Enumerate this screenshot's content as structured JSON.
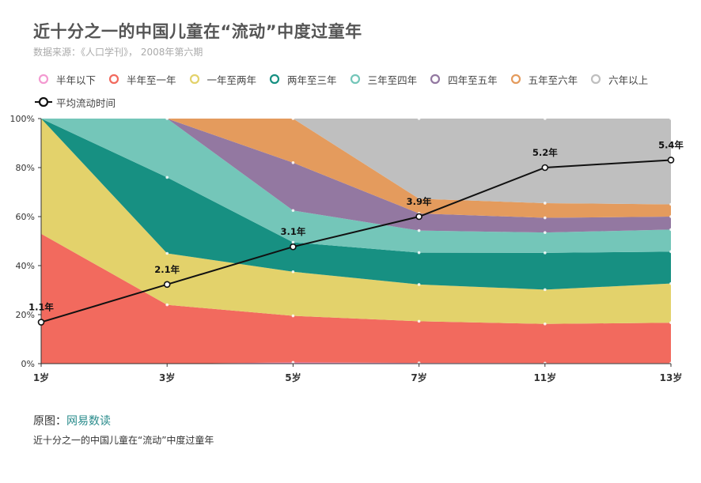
{
  "title": "近十分之一的中国儿童在“流动”中度过童年",
  "subtitle": "数据来源：《人口学刊》， 2008年第六期",
  "source": {
    "label": "原图：",
    "link": "网易数读"
  },
  "caption": "近十分之一的中国儿童在“流动”中度过童年",
  "chart_data": {
    "type": "area",
    "stacked": true,
    "categories": [
      "1岁",
      "3岁",
      "5岁",
      "7岁",
      "11岁",
      "13岁"
    ],
    "ylim": [
      0,
      100
    ],
    "y_ticks": [
      "0%",
      "20%",
      "40%",
      "60%",
      "80%",
      "100%"
    ],
    "series": [
      {
        "name": "半年以下",
        "color": "#f39ad1",
        "values": [
          0,
          0,
          0.5,
          0.3,
          0.2,
          0.2
        ]
      },
      {
        "name": "半年至一年",
        "color": "#f26a5e",
        "values": [
          53,
          24,
          19,
          17,
          16,
          16.5
        ]
      },
      {
        "name": "一年至两年",
        "color": "#e3d26b",
        "values": [
          47,
          21,
          18,
          15,
          14,
          16
        ]
      },
      {
        "name": "两年至三年",
        "color": "#179082",
        "values": [
          0,
          31,
          12,
          13,
          15,
          13
        ]
      },
      {
        "name": "三年至四年",
        "color": "#74c6b9",
        "values": [
          0,
          24,
          13,
          9,
          8.3,
          9
        ]
      },
      {
        "name": "四年至五年",
        "color": "#9378a1",
        "values": [
          0,
          0,
          19.5,
          7,
          6,
          5.3
        ]
      },
      {
        "name": "五年至六年",
        "color": "#e49b5d",
        "values": [
          0,
          0,
          18,
          6,
          6,
          5
        ]
      },
      {
        "name": "六年以上",
        "color": "#bfbfbf",
        "values": [
          0,
          0,
          0,
          32.7,
          34.5,
          35
        ]
      }
    ],
    "line": {
      "name": "平均流动时间",
      "color": "#111111",
      "values": [
        1.1,
        2.1,
        3.1,
        3.9,
        5.2,
        5.4
      ],
      "labels": [
        "1.1年",
        "2.1年",
        "3.1年",
        "3.9年",
        "5.2年",
        "5.4年"
      ]
    },
    "legend_position": "top",
    "grid": false
  }
}
